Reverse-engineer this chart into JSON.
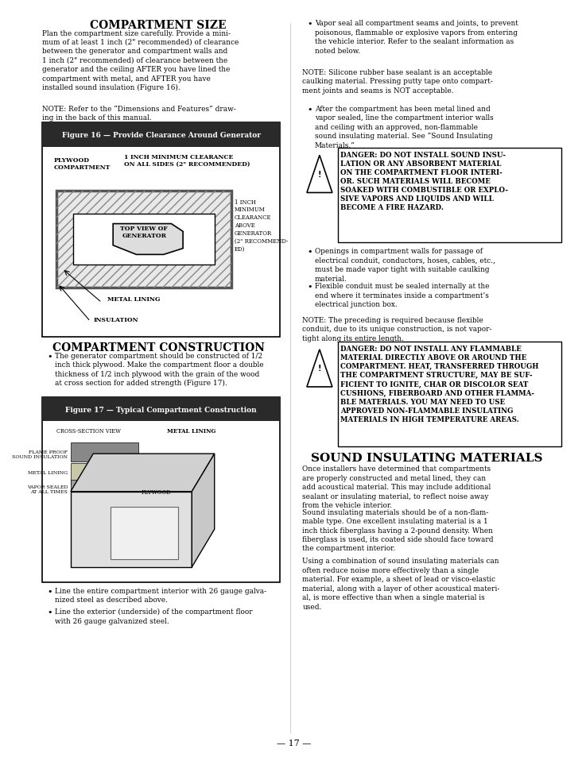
{
  "page_bg": "#ffffff",
  "page_width": 7.37,
  "page_height": 9.54,
  "sections": {
    "compartment_size_title": "COMPARTMENT SIZE",
    "compartment_size_body": "Plan the compartment size carefully. Provide a mini-\nmum of at least 1 inch (2\" recommended) of clearance\nbetween the generator and compartment walls and\n1 inch (2\" recommended) of clearance between the\ngenerator and the ceiling AFTER you have lined the\ncompartment with metal, and AFTER you have\ninstalled sound insulation (Figure 16).",
    "compartment_size_note": "NOTE: Refer to the “Dimensions and Features” draw-\ning in the back of this manual.",
    "figure16_caption": "Figure 16 — Provide Clearance Around Generator",
    "figure16_clearance": "1 INCH MINIMUM CLEARANCE\nON ALL SIDES (2\" RECOMMENDED)",
    "figure16_topview": "TOP VIEW OF\nGENERATOR",
    "figure16_rightlabel": "1 INCH\nMINIMUM\nCLEARANCE\nABOVE\nGENERATOR\n(2\" RECOMMEND-\nED)",
    "figure16_metal": "METAL LINING",
    "figure16_insulation": "INSULATION",
    "compartment_construction_title": "COMPARTMENT CONSTRUCTION",
    "compartment_construction_body1": "The generator compartment should be constructed of 1/2\ninch thick plywood. Make the compartment floor a double\nthickness of 1/2 inch plywood with the grain of the wood\nat cross section for added strength (Figure 17).",
    "figure17_caption": "Figure 17 — Typical Compartment Construction",
    "figure17_cross": "CROSS-SECTION VIEW",
    "figure17_metal_lining": "METAL LINING",
    "figure17_flame": "FLAME PROOF\nSOUND INSULATION",
    "figure17_metal2": "METAL LINING",
    "figure17_vapor": "VAPOR SEALED\nAT ALL TIMES",
    "figure17_plywood": "PLYWOOD",
    "compartment_construction_bullet1": "Line the entire compartment interior with 26 gauge galva-\nnized steel as described above.",
    "compartment_construction_bullet2": "Line the exterior (underside) of the compartment floor\nwith 26 gauge galvanized steel.",
    "right_bullet1_intro": "Vapor seal all compartment seams and joints, to prevent\npoisonous, flammable or explosive vapors from entering\nthe vehicle interior. Refer to the sealant information as\nnoted below.",
    "right_note1": "NOTE: Silicone rubber base sealant is an acceptable\ncaulking material. Pressing putty tape onto compart-\nment joints and seams is NOT acceptable.",
    "right_bullet2": "After the compartment has been metal lined and\nvapor sealed, line the compartment interior walls\nand ceiling with an approved, non-flammable\nsound insulating material. See “Sound Insulating\nMaterials.”",
    "danger1": "DANGER: DO NOT INSTALL SOUND INSU-\nLATION OR ANY ABSORBENT MATERIAL\nON THE COMPARTMENT FLOOR INTERI-\nOR. SUCH MATERIALS WILL BECOME\nSOAKED WITH COMBUSTIBLE OR EXPLO-\nSIVE VAPORS AND LIQUIDS AND WILL\nBECOME A FIRE HAZARD.",
    "right_bullet3": "Openings in compartment walls for passage of\nelectrical conduit, conductors, hoses, cables, etc.,\nmust be made vapor tight with suitable caulking\nmaterial.",
    "right_bullet4": "Flexible conduit must be sealed internally at the\nend where it terminates inside a compartment’s\nelectrical junction box.",
    "right_note2": "NOTE: The preceding is required because flexible\nconduit, due to its unique construction, is not vapor-\ntight along its entire length.",
    "danger2": "DANGER: DO NOT INSTALL ANY FLAMMABLE\nMATERIAL DIRECTLY ABOVE OR AROUND THE\nCOMPARTMENT. HEAT, TRANSFERRED THROUGH\nTHE COMPARTMENT STRUCTURE, MAY BE SUF-\nFICIENT TO IGNITE, CHAR OR DISCOLOR SEAT\nCUSHIONS, FIBERBOARD AND OTHER FLAMMA-\nBLE MATERIALS. YOU MAY NEED TO USE\nAPPROVED NON-FLAMMABLE INSULATING\nMATERIALS IN HIGH TEMPERATURE AREAS.",
    "sound_insulating_title": "SOUND INSULATING MATERIALS",
    "sound_insulating_body1": "Once installers have determined that compartments\nare properly constructed and metal lined, they can\nadd acoustical material. This may include additional\nsealant or insulating material, to reflect noise away\nfrom the vehicle interior.",
    "sound_insulating_body2": "Sound insulating materials should be of a non-flam-\nmable type. One excellent insulating material is a 1\ninch thick fiberglass having a 2-pound density. When\nfiberglass is used, its coated side should face toward\nthe compartment interior.",
    "sound_insulating_body3": "Using a combination of sound insulating materials can\noften reduce noise more effectively than a single\nmaterial. For example, a sheet of lead or visco-elastic\nmaterial, along with a layer of other acoustical materi-\nal, is more effective than when a single material is\nused.",
    "page_number": "— 17 —"
  }
}
